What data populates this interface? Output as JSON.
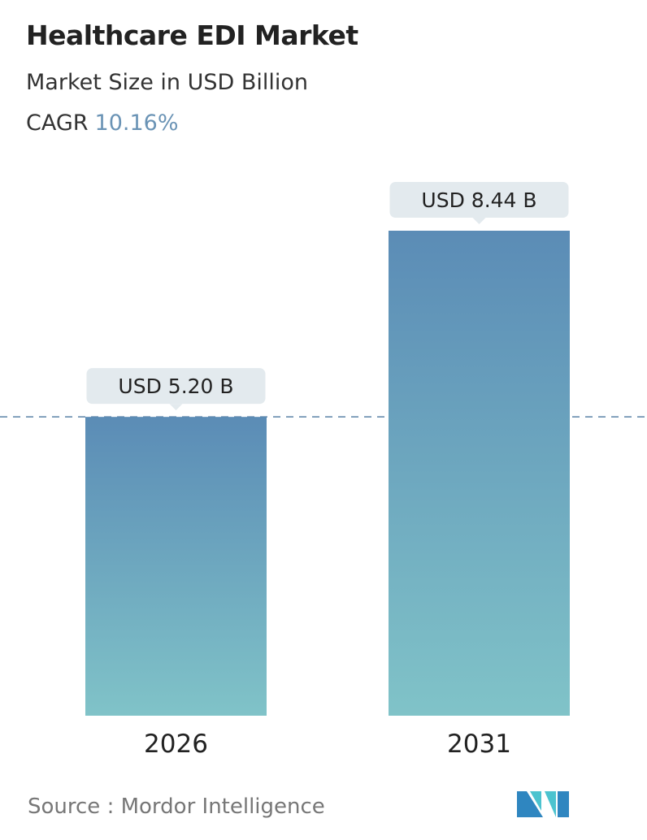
{
  "header": {
    "title": "Healthcare EDI Market",
    "subtitle": "Market Size in USD Billion",
    "cagr_label": "CAGR",
    "cagr_value": "10.16%"
  },
  "chart_data": {
    "type": "bar",
    "categories": [
      "2026",
      "2031"
    ],
    "values": [
      5.2,
      8.44
    ],
    "data_labels": [
      "USD 5.20 B",
      "USD 8.44 B"
    ],
    "ylabel": "Market Size in USD Billion",
    "ylim": [
      0,
      8.44
    ],
    "grid": false,
    "reference_line": {
      "value": 5.2,
      "style": "dashed"
    },
    "colors": {
      "bar_top": "#5b8cb6",
      "bar_bottom": "#80c3c8",
      "label_bg": "#e3eaee",
      "ref_line": "#5b82a6"
    }
  },
  "footer": {
    "source": "Source :  Mordor Intelligence",
    "logo_text": "Mordor Intelligence"
  }
}
